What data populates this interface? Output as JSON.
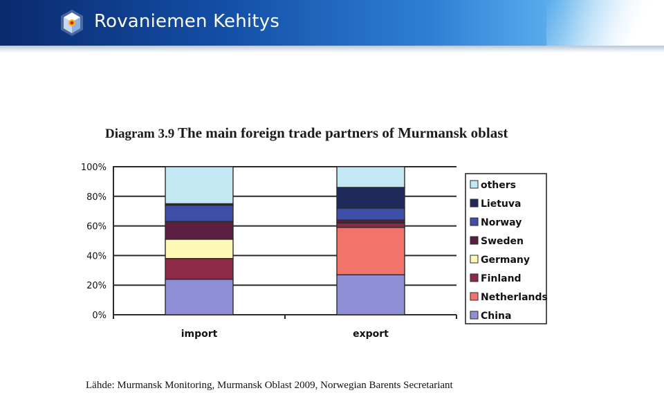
{
  "header": {
    "brand_name": "Rovaniemen Kehitys",
    "logo_icon": "hexagon-cube-logo-icon"
  },
  "chart_title": {
    "prefix": "Diagram 3.9",
    "main": "The main foreign trade partners of Murmansk oblast"
  },
  "chart_data": {
    "type": "bar",
    "stacked": true,
    "title": "Diagram 3.9 The main foreign trade partners of Murmansk oblast",
    "categories": [
      "import",
      "export"
    ],
    "ylim": [
      0,
      100
    ],
    "yticks": [
      "0%",
      "20%",
      "40%",
      "60%",
      "80%",
      "100%"
    ],
    "grid": true,
    "legend_position": "right",
    "series": [
      {
        "name": "China",
        "color": "#8f8fd6",
        "values": [
          24,
          27
        ]
      },
      {
        "name": "Netherlands",
        "color": "#f2736a",
        "values": [
          0,
          32
        ]
      },
      {
        "name": "Finland",
        "color": "#8c2a48",
        "values": [
          14,
          3
        ]
      },
      {
        "name": "Germany",
        "color": "#fdf8b8",
        "values": [
          13,
          0
        ]
      },
      {
        "name": "Sweden",
        "color": "#5a1f3e",
        "values": [
          12,
          2
        ]
      },
      {
        "name": "Norway",
        "color": "#3f4fa8",
        "values": [
          11,
          8
        ]
      },
      {
        "name": "Lietuva",
        "color": "#1f2a5c",
        "values": [
          1,
          14
        ]
      },
      {
        "name": "others",
        "color": "#c4e8f3",
        "values": [
          25,
          14
        ]
      }
    ],
    "legend_order": [
      "others",
      "Lietuva",
      "Norway",
      "Sweden",
      "Germany",
      "Finland",
      "Netherlands",
      "China"
    ]
  },
  "footer": {
    "source": "Lähde: Murmansk Monitoring, Murmansk Oblast 2009, Norwegian Barents Secretariant"
  }
}
